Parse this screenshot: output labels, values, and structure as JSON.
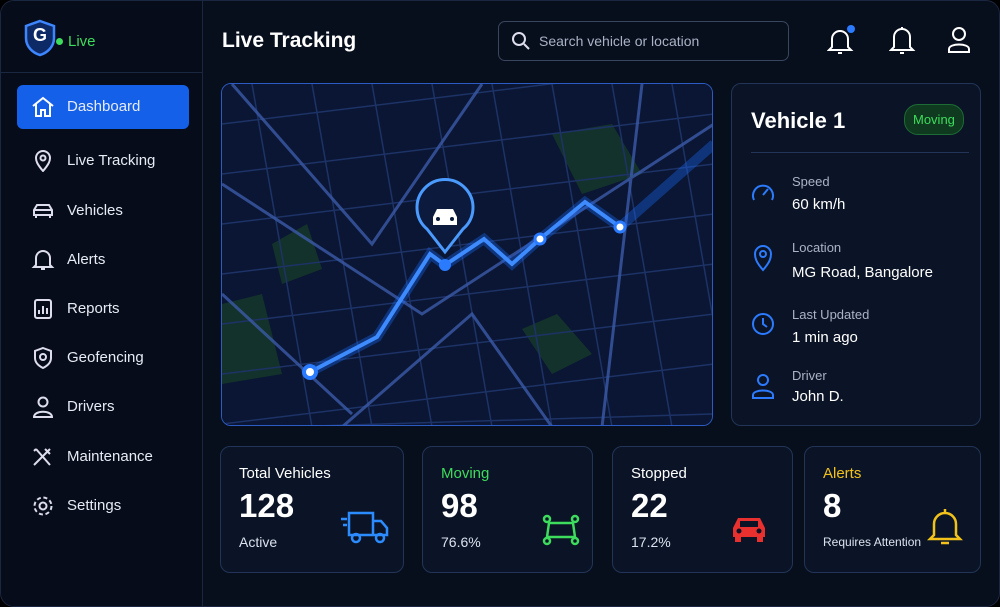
{
  "brand": {
    "logo": "G",
    "status": "Live"
  },
  "nav": [
    "Dashboard",
    "Live Tracking",
    "Vehicles",
    "Alerts",
    "Reports",
    "Geofencing",
    "Drivers",
    "Maintenance",
    "Settings"
  ],
  "header": {
    "title": "Live Tracking",
    "search_placeholder": "Search vehicle or location"
  },
  "vehicle": {
    "name": "Vehicle 1",
    "status": "Moving",
    "fields": [
      {
        "label": "Speed",
        "value": "60 km/h"
      },
      {
        "label": "Location",
        "value": "MG Road, Bangalore"
      },
      {
        "label": "Last Updated",
        "value": "1 min ago"
      },
      {
        "label": "Driver",
        "value": "John D."
      }
    ]
  },
  "stats": [
    {
      "title": "Total Vehicles",
      "value": 128,
      "sub": "Active"
    },
    {
      "title": "Moving",
      "value": 98,
      "sub": "76.6%"
    },
    {
      "title": "Stopped",
      "value": 22,
      "sub": "17.2%"
    },
    {
      "title": "Alerts",
      "value": 8,
      "sub": "Requires Attention"
    }
  ]
}
